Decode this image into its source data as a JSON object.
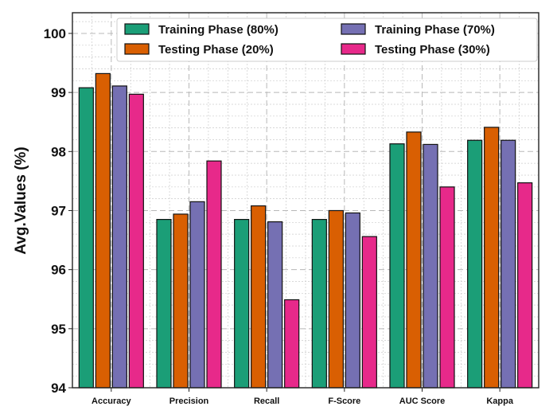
{
  "chart_data": {
    "type": "bar",
    "title": "",
    "xlabel": "",
    "ylabel": "Avg.Values (%)",
    "ylim": [
      94,
      100.35
    ],
    "yticks": [
      94,
      95,
      96,
      97,
      98,
      99,
      100
    ],
    "grid": true,
    "legend_placement": "top",
    "categories": [
      "Accuracy",
      "Precision",
      "Recall",
      "F-Score",
      "AUC Score",
      "Kappa"
    ],
    "series": [
      {
        "name": "Training Phase (80%)",
        "color": "#1b9e77",
        "values": [
          99.08,
          96.85,
          96.85,
          96.85,
          98.13,
          98.19
        ]
      },
      {
        "name": "Testing Phase (20%)",
        "color": "#d95f02",
        "values": [
          99.32,
          96.94,
          97.08,
          97.0,
          98.33,
          98.41
        ]
      },
      {
        "name": "Training Phase (70%)",
        "color": "#7570b3",
        "values": [
          99.11,
          97.15,
          96.81,
          96.96,
          98.12,
          98.19
        ]
      },
      {
        "name": "Testing Phase (30%)",
        "color": "#e7298a",
        "values": [
          98.97,
          97.84,
          95.49,
          96.56,
          97.4,
          97.47
        ]
      }
    ]
  }
}
